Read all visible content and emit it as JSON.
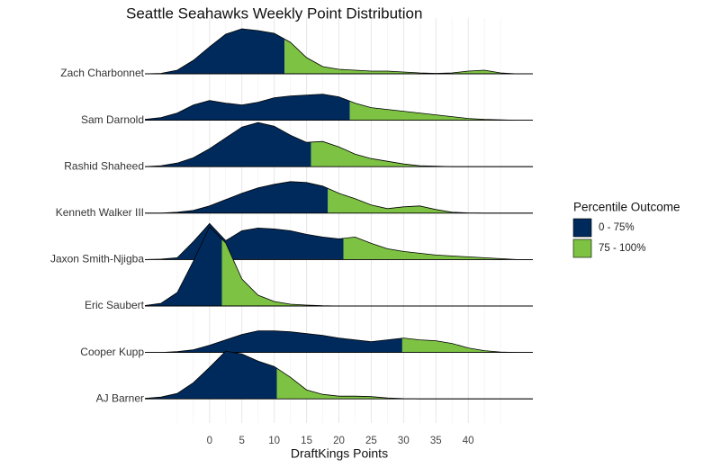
{
  "chart_data": {
    "type": "ridgeline",
    "title": "Seattle Seahawks Weekly Point Distribution",
    "x_label": "DraftKings Points",
    "xlim": [
      -10,
      50
    ],
    "xticks": [
      0,
      5,
      10,
      15,
      20,
      25,
      30,
      35,
      40
    ],
    "minor_xticks": [
      -5,
      -2.5,
      2.5,
      7.5,
      12.5,
      17.5,
      22.5,
      27.5,
      32.5,
      37.5,
      42.5,
      45
    ],
    "grid": true,
    "x": [
      -10,
      -7.5,
      -5,
      -2.5,
      0,
      2.5,
      5,
      7.5,
      10,
      12.5,
      15,
      17.5,
      20,
      22.5,
      25,
      27.5,
      30,
      32.5,
      35,
      37.5,
      40,
      42.5,
      45,
      47.5,
      50
    ],
    "series": [
      {
        "name": "Zach Charbonnet",
        "cut": 11.6,
        "values": [
          0,
          0.5,
          4,
          15,
          30,
          44,
          50,
          48,
          45,
          35,
          18,
          8,
          5,
          4,
          3,
          3,
          2,
          1,
          0.5,
          1,
          3,
          4,
          1,
          0,
          0
        ]
      },
      {
        "name": "Sam Darnold",
        "cut": 21.7,
        "values": [
          1,
          3,
          8,
          17,
          22,
          19,
          17,
          20,
          25,
          27,
          28,
          29,
          26,
          19,
          14,
          12,
          10,
          8,
          6,
          4,
          2,
          1,
          0.5,
          0,
          0
        ]
      },
      {
        "name": "Rashid Shaheed",
        "cut": 15.7,
        "values": [
          0,
          1,
          4,
          10,
          20,
          32,
          44,
          49,
          45,
          35,
          27,
          28,
          22,
          14,
          9,
          6,
          3,
          1,
          0.5,
          0,
          0,
          0,
          0,
          0,
          0
        ]
      },
      {
        "name": "Kenneth Walker III",
        "cut": 18.3,
        "values": [
          0,
          0,
          1,
          3,
          8,
          15,
          22,
          28,
          32,
          35,
          34,
          30,
          22,
          16,
          9,
          5,
          7,
          8,
          4,
          1,
          0.3,
          0,
          0,
          0,
          0
        ]
      },
      {
        "name": "Jaxon Smith-Njigba",
        "cut": 20.7,
        "values": [
          0,
          0.5,
          2,
          20,
          40,
          21,
          32,
          35,
          34,
          32,
          28,
          25,
          23,
          25,
          18,
          12,
          9,
          7,
          5,
          4,
          3,
          2,
          1,
          0,
          0
        ]
      },
      {
        "name": "Eric Saubert",
        "cut": 1.9,
        "values": [
          0.5,
          3,
          15,
          50,
          88,
          70,
          30,
          12,
          5,
          2,
          1,
          0.3,
          0,
          0,
          0,
          0,
          0,
          0,
          0,
          0,
          0,
          0,
          0,
          0,
          0
        ]
      },
      {
        "name": "Cooper Kupp",
        "cut": 29.8,
        "values": [
          0,
          0,
          1,
          3,
          8,
          14,
          20,
          24,
          24,
          23,
          21,
          19,
          16,
          14,
          12,
          14,
          16,
          14,
          13,
          10,
          5,
          2,
          0.5,
          0,
          0
        ]
      },
      {
        "name": "AJ Barner",
        "cut": 10.4,
        "values": [
          0.5,
          2,
          6,
          18,
          35,
          53,
          50,
          42,
          36,
          24,
          10,
          5,
          3,
          3,
          2.5,
          1,
          0.3,
          0,
          0,
          0,
          0,
          0,
          0,
          0,
          0
        ]
      }
    ],
    "legend": {
      "title": "Percentile Outcome",
      "items": [
        {
          "label": "0 - 75%",
          "color": "#002a5c"
        },
        {
          "label": "75 - 100%",
          "color": "#7dc243"
        }
      ]
    }
  }
}
